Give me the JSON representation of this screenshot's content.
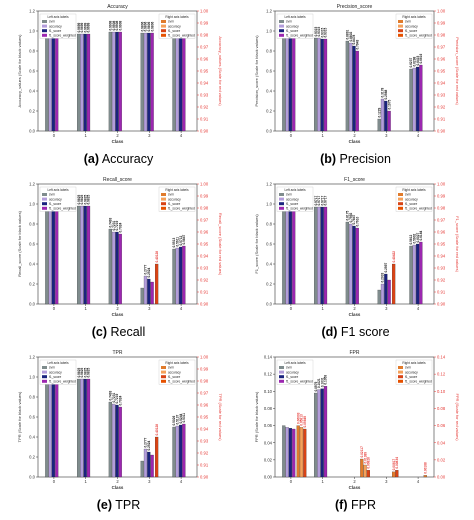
{
  "colors": {
    "svm": "#7f8c8d",
    "accuracy": "#b39ddb",
    "f1_score": "#1a237e",
    "f1_score_weighted": "#9c27b0",
    "right_svm": "#e07b2c",
    "right_accuracy": "#f5a15a",
    "right_f1": "#d84315",
    "right_f1w": "#e65100",
    "axis_right": "#e53935"
  },
  "chart_data": [
    {
      "type": "bar",
      "title": "Accuracy",
      "caption_letter": "(a)",
      "caption_text": "Accuracy",
      "xlabel": "Class",
      "ylabel": "Accuracy_values (Scale for black values)",
      "ylabel_right": "Accuracy_values (Scale for red values)",
      "categories": [
        "0",
        "1",
        "2",
        "3",
        "4"
      ],
      "ylim": [
        0,
        1.2
      ],
      "yticks": [
        "0.0",
        "0.2",
        "0.4",
        "0.6",
        "0.8",
        "1.0",
        "1.2"
      ],
      "right_ticks": [
        "1.00",
        "0.99",
        "0.98",
        "0.97",
        "0.96",
        "0.95",
        "0.94",
        "0.93",
        "0.92",
        "0.91",
        "0.90"
      ],
      "legend_left_title": "Left axis labels",
      "legend_right_title": "Right axis labels",
      "legend_left": [
        "svm",
        "accuracy",
        "f1_score",
        "f1_score_weighted"
      ],
      "legend_right": [
        "svm",
        "accuracy",
        "f1_score",
        "f1_score_weighted"
      ],
      "series": [
        {
          "name": "svm",
          "values": [
            0.98,
            0.97,
            0.99,
            0.98,
            0.99
          ]
        },
        {
          "name": "accuracy",
          "values": [
            0.98,
            0.97,
            0.99,
            0.98,
            0.99
          ]
        },
        {
          "name": "f1_score",
          "values": [
            0.98,
            0.97,
            0.99,
            0.98,
            0.99
          ]
        },
        {
          "name": "f1_score_weighted",
          "values": [
            0.98,
            0.97,
            0.99,
            0.98,
            0.99
          ]
        }
      ],
      "labels": [
        [
          "0.9813",
          "0.9813",
          "0.9813",
          "0.9813"
        ],
        [
          "0.9699",
          "0.9699",
          "0.9699",
          "0.9699"
        ],
        [
          "0.9908",
          "0.9908",
          "0.9908",
          "0.9908"
        ],
        [
          "0.9806",
          "0.9806",
          "0.9806",
          "0.9806"
        ],
        [
          "0.9906",
          "0.9906",
          "0.9906",
          "0.9906"
        ]
      ],
      "right_series": []
    },
    {
      "type": "bar",
      "title": "Precision_score",
      "caption_letter": "(b)",
      "caption_text": "Precision",
      "xlabel": "Class",
      "ylabel": "Precision_score (Scale for black values)",
      "ylabel_right": "Precision_score (Scale for red values)",
      "categories": [
        "0",
        "1",
        "2",
        "3",
        "4"
      ],
      "ylim": [
        0,
        1.2
      ],
      "yticks": [
        "0.0",
        "0.2",
        "0.4",
        "0.6",
        "0.8",
        "1.0",
        "1.2"
      ],
      "right_ticks": [
        "1.00",
        "0.99",
        "0.98",
        "0.97",
        "0.96",
        "0.95",
        "0.94",
        "0.93",
        "0.92",
        "0.91",
        "0.90"
      ],
      "legend_left_title": "Left axis labels",
      "legend_right_title": "Right axis labels",
      "legend_left": [
        "svm",
        "accuracy",
        "f1_score",
        "f1_score_weighted"
      ],
      "legend_right": [
        "svm",
        "accuracy",
        "f1_score",
        "f1_score_weighted"
      ],
      "series": [
        {
          "name": "svm",
          "values": [
            0.99,
            0.93,
            0.9,
            0.12,
            0.62
          ]
        },
        {
          "name": "accuracy",
          "values": [
            0.99,
            0.93,
            0.88,
            0.32,
            0.63
          ]
        },
        {
          "name": "f1_score",
          "values": [
            0.99,
            0.92,
            0.85,
            0.3,
            0.64
          ]
        },
        {
          "name": "f1_score_weighted",
          "values": [
            0.99,
            0.92,
            0.8,
            0.2,
            0.66
          ]
        }
      ],
      "labels": [
        [
          "0.9948",
          "0.9948",
          "0.9948",
          "0.9948"
        ],
        [
          "0.9315",
          "0.9315",
          "0.9315",
          "0.9315"
        ],
        [
          "0.8891",
          "0.8802",
          "0.8478",
          "0.7943"
        ],
        [
          "0.1229",
          "0.3178",
          "0.2988",
          "0.1975"
        ],
        [
          "0.6237",
          "0.6298",
          "0.6415",
          "0.6616"
        ]
      ],
      "right_series": []
    },
    {
      "type": "bar",
      "title": "Recall_score",
      "caption_letter": "(c)",
      "caption_text": "Recall",
      "xlabel": "Class",
      "ylabel": "Recall_score (Scale for black values)",
      "ylabel_right": "Recall_score (Scale for red values)",
      "categories": [
        "0",
        "1",
        "2",
        "3",
        "4"
      ],
      "ylim": [
        0,
        1.2
      ],
      "yticks": [
        "0.0",
        "0.2",
        "0.4",
        "0.6",
        "0.8",
        "1.0",
        "1.2"
      ],
      "right_ticks": [
        "1.00",
        "0.99",
        "0.98",
        "0.97",
        "0.96",
        "0.95",
        "0.94",
        "0.93",
        "0.92",
        "0.91",
        "0.90"
      ],
      "legend_left_title": "Left axis labels",
      "legend_right_title": "Right axis labels",
      "legend_left": [
        "svm",
        "accuracy",
        "f1_score",
        "f1_score_weighted"
      ],
      "legend_right": [
        "svm",
        "accuracy",
        "f1_score",
        "f1_score_weighted"
      ],
      "series": [
        {
          "name": "svm",
          "values": [
            0.98,
            0.98,
            0.75,
            0.16,
            0.55
          ]
        },
        {
          "name": "accuracy",
          "values": [
            0.98,
            0.98,
            0.72,
            0.28,
            0.56
          ]
        },
        {
          "name": "f1_score",
          "values": [
            0.98,
            0.98,
            0.72,
            0.25,
            0.57
          ]
        },
        {
          "name": "f1_score_weighted",
          "values": [
            0.98,
            0.98,
            0.7,
            0.22,
            0.58
          ]
        }
      ],
      "labels": [
        [
          "0.9813",
          "0.9813",
          "0.9813",
          "0.9813"
        ],
        [
          "0.9825",
          "0.9825",
          "0.9825",
          "0.9825"
        ],
        [
          "0.7493",
          "0.7231",
          "0.7219",
          "0.7024"
        ],
        [
          "",
          "0.2777",
          "0.2524",
          ""
        ],
        [
          "0.5513",
          "0.5611",
          "0.5712",
          "0.5847"
        ]
      ],
      "right_series": [
        {
          "name": "f1_score",
          "category": 3,
          "value": 0.4,
          "label": "0.40128"
        }
      ]
    },
    {
      "type": "bar",
      "title": "F1_score",
      "caption_letter": "(d)",
      "caption_text": "F1 score",
      "xlabel": "Class",
      "ylabel": "F1_score (Scale for black values)",
      "ylabel_right": "F1_score (Scale for red values)",
      "categories": [
        "0",
        "1",
        "2",
        "3",
        "4"
      ],
      "ylim": [
        0,
        1.2
      ],
      "yticks": [
        "0.0",
        "0.2",
        "0.4",
        "0.6",
        "0.8",
        "1.0",
        "1.2"
      ],
      "right_ticks": [
        "1.00",
        "0.99",
        "0.98",
        "0.97",
        "0.96",
        "0.95",
        "0.94",
        "0.93",
        "0.92",
        "0.91",
        "0.90"
      ],
      "legend_left_title": "Left axis labels",
      "legend_right_title": "Right axis labels",
      "legend_left": [
        "svm",
        "accuracy",
        "f1_score",
        "f1_score_weighted"
      ],
      "legend_right": [
        "svm",
        "accuracy",
        "f1_score",
        "f1_score_weighted"
      ],
      "series": [
        {
          "name": "svm",
          "values": [
            0.99,
            0.97,
            0.82,
            0.14,
            0.58
          ]
        },
        {
          "name": "accuracy",
          "values": [
            0.99,
            0.97,
            0.8,
            0.2,
            0.59
          ]
        },
        {
          "name": "f1_score",
          "values": [
            0.99,
            0.97,
            0.78,
            0.3,
            0.6
          ]
        },
        {
          "name": "f1_score_weighted",
          "values": [
            0.99,
            0.97,
            0.76,
            0.24,
            0.62
          ]
        }
      ],
      "labels": [
        [
          "0.9880",
          "0.9880",
          "0.9880",
          "0.9880"
        ],
        [
          "0.9717",
          "0.9717",
          "0.9717",
          "0.9717"
        ],
        [
          "0.8175",
          "0.7992",
          "0.7847",
          "0.7610"
        ],
        [
          "",
          "0.2033",
          "0.2997",
          ""
        ],
        [
          "0.5812",
          "0.5902",
          "0.6027",
          "0.6184"
        ]
      ],
      "right_series": [
        {
          "name": "f1_score",
          "category": 3,
          "value": 0.4,
          "label": "0.40422"
        }
      ]
    },
    {
      "type": "bar",
      "title": "TPR",
      "caption_letter": "(e)",
      "caption_text": "TPR",
      "xlabel": "Class",
      "ylabel": "TPR (Scale for black values)",
      "ylabel_right": "TPR (Scale for red values)",
      "categories": [
        "0",
        "1",
        "2",
        "3",
        "4"
      ],
      "ylim": [
        0,
        1.2
      ],
      "yticks": [
        "0.0",
        "0.2",
        "0.4",
        "0.6",
        "0.8",
        "1.0",
        "1.2"
      ],
      "right_ticks": [
        "1.00",
        "0.99",
        "0.98",
        "0.97",
        "0.96",
        "0.95",
        "0.94",
        "0.93",
        "0.92",
        "0.91",
        "0.90"
      ],
      "legend_left_title": "Left axis labels",
      "legend_right_title": "Right axis labels",
      "legend_left": [
        "svm",
        "accuracy",
        "f1_score",
        "f1_score_weighted"
      ],
      "legend_right": [
        "svm",
        "accuracy",
        "f1_score",
        "f1_score_weighted"
      ],
      "series": [
        {
          "name": "svm",
          "values": [
            0.98,
            0.98,
            0.75,
            0.16,
            0.5
          ]
        },
        {
          "name": "accuracy",
          "values": [
            0.98,
            0.98,
            0.73,
            0.28,
            0.51
          ]
        },
        {
          "name": "f1_score",
          "values": [
            0.98,
            0.98,
            0.72,
            0.25,
            0.52
          ]
        },
        {
          "name": "f1_score_weighted",
          "values": [
            0.98,
            0.98,
            0.7,
            0.22,
            0.53
          ]
        }
      ],
      "labels": [
        [
          "0.9813",
          "0.9813",
          "0.9813",
          "0.9813"
        ],
        [
          "0.9825",
          "0.9825",
          "0.9825",
          "0.9825"
        ],
        [
          "0.7493",
          "0.7231",
          "0.7219",
          "0.7024"
        ],
        [
          "",
          "0.2777",
          "0.2524",
          ""
        ],
        [
          "0.5026",
          "0.5137",
          "0.5244",
          "0.5311"
        ]
      ],
      "right_series": [
        {
          "name": "f1_score",
          "category": 3,
          "value": 0.4,
          "label": "0.40128"
        }
      ]
    },
    {
      "type": "bar",
      "title": "FPR",
      "caption_letter": "(f)",
      "caption_text": "FPR",
      "xlabel": "Class",
      "ylabel": "FPR (Scale for black values)",
      "ylabel_right": "FPR (Scale for red values)",
      "categories": [
        "0",
        "1",
        "2",
        "3",
        "4"
      ],
      "ylim": [
        0,
        0.14
      ],
      "yticks": [
        "0.00",
        "0.02",
        "0.04",
        "0.06",
        "0.08",
        "0.10",
        "0.12",
        "0.14"
      ],
      "right_ticks": [
        "0.14",
        "0.12",
        "0.10",
        "0.08",
        "0.06",
        "0.04",
        "0.02",
        "0.00"
      ],
      "legend_left_title": "Left axis labels",
      "legend_right_title": "Right axis labels",
      "legend_left": [
        "svm",
        "accuracy",
        "f1_score",
        "f1_score_weighted"
      ],
      "legend_right": [
        "svm",
        "accuracy",
        "f1_score",
        "f1_score_weighted"
      ],
      "series": [
        {
          "name": "svm",
          "values": [
            0.06,
            0.098,
            0.0,
            0.0,
            0.0
          ]
        },
        {
          "name": "accuracy",
          "values": [
            0.058,
            0.102,
            0.0,
            0.0,
            0.0
          ]
        },
        {
          "name": "f1_score",
          "values": [
            0.057,
            0.103,
            0.0,
            0.0,
            0.0
          ]
        },
        {
          "name": "f1_score_weighted",
          "values": [
            0.056,
            0.106,
            0.0,
            0.0,
            0.0
          ]
        }
      ],
      "labels": [
        [
          "",
          "",
          "",
          ""
        ],
        [
          "0.0979",
          "0.1021",
          "0.1031",
          "0.1058"
        ],
        [
          "",
          "",
          "",
          ""
        ],
        [
          "",
          "",
          "",
          ""
        ],
        [
          "",
          "",
          "",
          ""
        ]
      ],
      "right_series": [
        {
          "name": "svm",
          "category": 0,
          "value": 0.06,
          "label": "0.06003"
        },
        {
          "name": "accuracy",
          "category": 0,
          "value": 0.058,
          "label": "0.05813"
        },
        {
          "name": "f1_score",
          "category": 0,
          "value": 0.056,
          "label": "0.05649"
        },
        {
          "name": "svm",
          "category": 2,
          "value": 0.021,
          "label": "0.02117"
        },
        {
          "name": "accuracy",
          "category": 2,
          "value": 0.014,
          "label": "0.01389"
        },
        {
          "name": "f1_score",
          "category": 2,
          "value": 0.008,
          "label": "0.00828"
        },
        {
          "name": "svm",
          "category": 3,
          "value": 0.006,
          "label": "0.00617"
        },
        {
          "name": "f1_score",
          "category": 3,
          "value": 0.008,
          "label": "0.00834"
        },
        {
          "name": "svm",
          "category": 4,
          "value": 0.002,
          "label": "0.00188"
        }
      ]
    }
  ]
}
